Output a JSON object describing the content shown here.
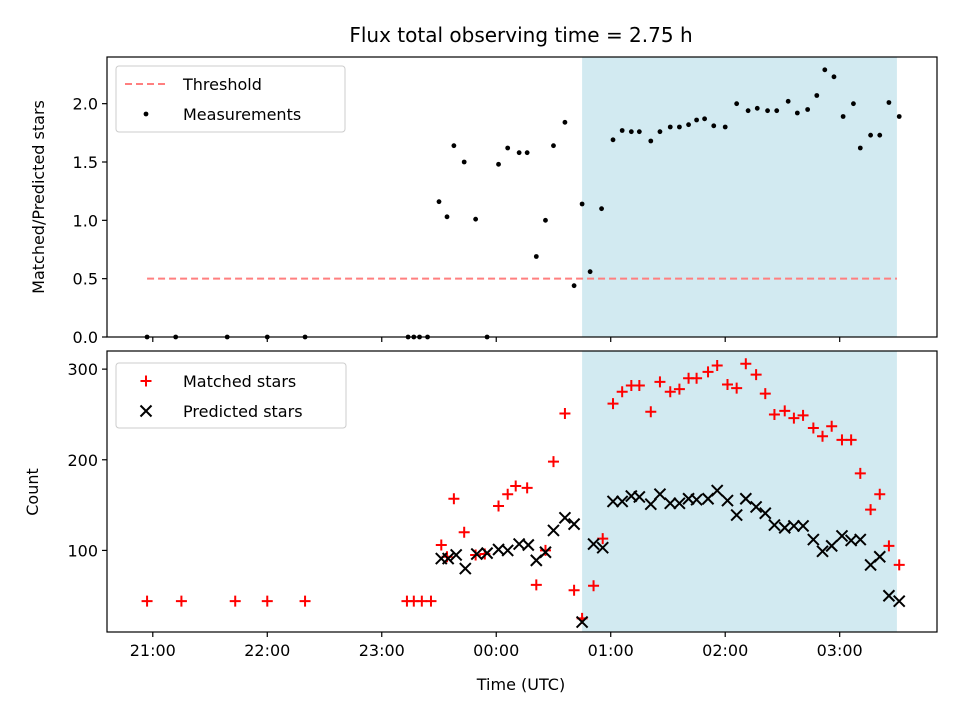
{
  "chart_data": {
    "type": "scatter",
    "title": "Flux total observing time = 2.75 h",
    "xlabel": "Time (UTC)",
    "x_unit": "hours UTC (values beyond 24 are the next day)",
    "xlim": [
      20.6,
      27.85
    ],
    "xticks": [
      21,
      22,
      23,
      24,
      25,
      26,
      27
    ],
    "xtick_labels": [
      "21:00",
      "22:00",
      "23:00",
      "00:00",
      "01:00",
      "02:00",
      "03:00"
    ],
    "shaded_interval": [
      24.75,
      27.5
    ],
    "shade_color": "#add8e6",
    "panels": [
      {
        "ylabel": "Matched/Predicted stars",
        "ylim": [
          0,
          2.4
        ],
        "yticks": [
          0.0,
          0.5,
          1.0,
          1.5,
          2.0
        ],
        "ytick_labels": [
          "0.0",
          "0.5",
          "1.0",
          "1.5",
          "2.0"
        ],
        "legend": {
          "placement": "upper left"
        },
        "lines": [
          {
            "name": "Threshold",
            "style": "dashed",
            "color": "#ff7f7f",
            "y": 0.5,
            "x": [
              20.95,
              27.5
            ]
          }
        ],
        "series": [
          {
            "name": "Measurements",
            "marker": "dot",
            "color": "#000000",
            "x": [
              20.95,
              21.2,
              21.65,
              22.0,
              22.33,
              23.23,
              23.28,
              23.33,
              23.4,
              23.5,
              23.57,
              23.63,
              23.72,
              23.82,
              23.92,
              24.02,
              24.1,
              24.2,
              24.27,
              24.35,
              24.43,
              24.5,
              24.6,
              24.68,
              24.75,
              24.82,
              24.92,
              25.02,
              25.1,
              25.18,
              25.25,
              25.35,
              25.43,
              25.52,
              25.6,
              25.68,
              25.75,
              25.82,
              25.9,
              26.0,
              26.1,
              26.2,
              26.28,
              26.37,
              26.45,
              26.55,
              26.63,
              26.72,
              26.8,
              26.87,
              26.95,
              27.03,
              27.12,
              27.18,
              27.27,
              27.35,
              27.43,
              27.52
            ],
            "y": [
              0.0,
              0.0,
              0.0,
              0.0,
              0.0,
              0.0,
              0.0,
              0.0,
              0.0,
              1.16,
              1.03,
              1.64,
              1.5,
              1.01,
              0.0,
              1.48,
              1.62,
              1.58,
              1.58,
              0.69,
              1.0,
              1.64,
              1.84,
              0.44,
              1.14,
              0.56,
              1.1,
              1.69,
              1.77,
              1.76,
              1.76,
              1.68,
              1.76,
              1.8,
              1.8,
              1.82,
              1.86,
              1.87,
              1.81,
              1.8,
              2.0,
              1.94,
              1.96,
              1.94,
              1.94,
              2.02,
              1.92,
              1.95,
              2.07,
              2.29,
              2.23,
              1.89,
              2.0,
              1.62,
              1.73,
              1.73,
              2.01,
              1.89
            ]
          }
        ]
      },
      {
        "ylabel": "Count",
        "ylim": [
          10,
          320
        ],
        "yticks": [
          100,
          200,
          300
        ],
        "ytick_labels": [
          "100",
          "200",
          "300"
        ],
        "legend": {
          "placement": "upper left"
        },
        "series": [
          {
            "name": "Matched stars",
            "marker": "plus",
            "color": "#ff0000",
            "x": [
              20.95,
              21.25,
              21.72,
              22.0,
              22.33,
              23.22,
              23.28,
              23.35,
              23.43,
              23.52,
              23.57,
              23.63,
              23.72,
              23.82,
              23.9,
              24.02,
              24.1,
              24.17,
              24.27,
              24.35,
              24.43,
              24.5,
              24.6,
              24.68,
              24.75,
              24.85,
              24.93,
              25.02,
              25.1,
              25.18,
              25.25,
              25.35,
              25.43,
              25.52,
              25.6,
              25.68,
              25.75,
              25.85,
              25.93,
              26.02,
              26.1,
              26.18,
              26.27,
              26.35,
              26.43,
              26.52,
              26.6,
              26.68,
              26.77,
              26.85,
              26.93,
              27.02,
              27.1,
              27.18,
              27.27,
              27.35,
              27.43,
              27.52
            ],
            "y": [
              44,
              44,
              44,
              44,
              44,
              44,
              44,
              44,
              44,
              106,
              93,
              157,
              120,
              95,
              96,
              149,
              162,
              171,
              169,
              62,
              100,
              198,
              251,
              56,
              25,
              61,
              113,
              262,
              275,
              282,
              282,
              253,
              286,
              275,
              278,
              290,
              290,
              297,
              304,
              283,
              279,
              306,
              294,
              273,
              250,
              254,
              246,
              249,
              235,
              226,
              237,
              222,
              222,
              185,
              145,
              162,
              105,
              84
            ]
          },
          {
            "name": "Predicted stars",
            "marker": "x",
            "color": "#000000",
            "x": [
              23.52,
              23.58,
              23.65,
              23.73,
              23.83,
              23.92,
              24.02,
              24.1,
              24.2,
              24.28,
              24.35,
              24.43,
              24.5,
              24.6,
              24.68,
              24.75,
              24.85,
              24.93,
              25.02,
              25.1,
              25.18,
              25.25,
              25.35,
              25.43,
              25.52,
              25.6,
              25.68,
              25.75,
              25.85,
              25.93,
              26.02,
              26.1,
              26.18,
              26.27,
              26.35,
              26.43,
              26.52,
              26.6,
              26.68,
              26.77,
              26.85,
              26.93,
              27.02,
              27.1,
              27.18,
              27.27,
              27.35,
              27.43,
              27.52
            ],
            "y": [
              91,
              91,
              95,
              80,
              96,
              97,
              101,
              100,
              107,
              106,
              89,
              98,
              122,
              136,
              129,
              21,
              107,
              103,
              154,
              154,
              160,
              159,
              151,
              162,
              152,
              152,
              157,
              156,
              157,
              166,
              155,
              139,
              157,
              148,
              141,
              128,
              125,
              127,
              127,
              112,
              99,
              105,
              116,
              111,
              112,
              84,
              93,
              50,
              44
            ]
          }
        ]
      }
    ]
  }
}
